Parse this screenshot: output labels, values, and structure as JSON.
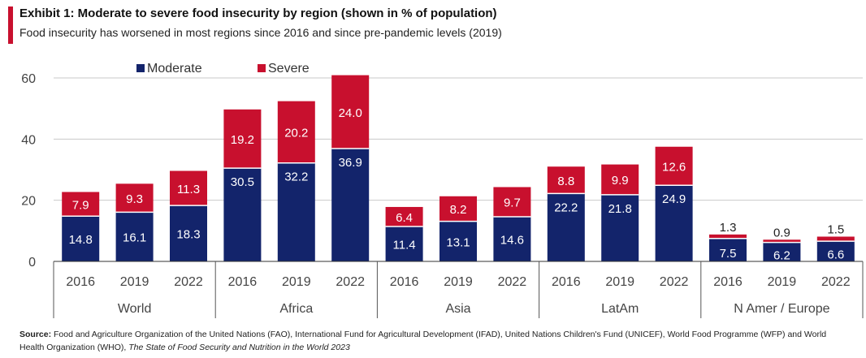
{
  "header": {
    "title": "Exhibit 1: Moderate to severe food insecurity by region (shown in % of population)",
    "subtitle": "Food insecurity has worsened in most regions since 2016 and since pre-pandemic levels (2019)"
  },
  "source": {
    "label": "Source:",
    "text": "Food and Agriculture Organization of the United Nations (FAO), International Fund for Agricultural Development (IFAD), United Nations Children's Fund (UNICEF), World Food Programme (WFP) and World Health Organization (WHO),",
    "italic": "The State of Food Security and Nutrition in the World 2023"
  },
  "colors": {
    "moderate": "#13246b",
    "severe": "#c8102e",
    "accent": "#c8102e"
  },
  "chart_data": {
    "type": "bar",
    "stacked": true,
    "legend_position": "top-left",
    "grid": true,
    "ylim": [
      0,
      60
    ],
    "yticks": [
      0,
      20,
      40,
      60
    ],
    "groups": [
      "World",
      "Africa",
      "Asia",
      "LatAm",
      "N Amer / Europe"
    ],
    "categories": [
      "2016",
      "2019",
      "2022",
      "2016",
      "2019",
      "2022",
      "2016",
      "2019",
      "2022",
      "2016",
      "2019",
      "2022",
      "2016",
      "2019",
      "2022"
    ],
    "series": [
      {
        "name": "Moderate",
        "values": [
          14.8,
          16.1,
          18.3,
          30.5,
          32.2,
          36.9,
          11.4,
          13.1,
          14.6,
          22.2,
          21.8,
          24.9,
          7.5,
          6.2,
          6.6
        ]
      },
      {
        "name": "Severe",
        "values": [
          7.9,
          9.3,
          11.3,
          19.2,
          20.2,
          24.0,
          6.4,
          8.2,
          9.7,
          8.8,
          9.9,
          12.6,
          1.3,
          0.9,
          1.5
        ]
      }
    ]
  }
}
